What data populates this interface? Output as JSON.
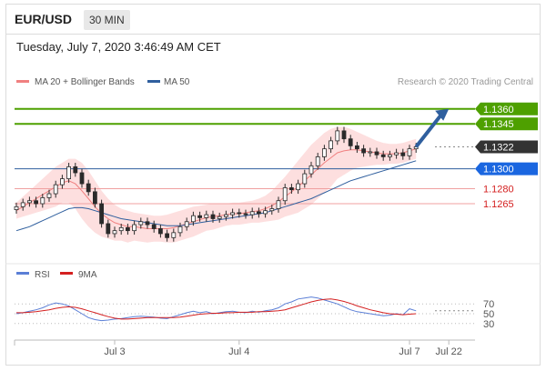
{
  "header": {
    "pair": "EUR/USD",
    "timeframe": "30 MIN"
  },
  "timestamp": "Tuesday, July 7, 2020 3:46:49 AM CET",
  "legend": {
    "ma20_bb": "MA 20 + Bollinger Bands",
    "ma50": "MA 50",
    "credit": "Research © 2020 Trading Central",
    "rsi": "RSI",
    "rsi_ma": "9MA"
  },
  "colors": {
    "ma20": "#f08080",
    "ma50": "#2f5f9e",
    "bands": "#fdd9d9",
    "green": "#4ea000",
    "red": "#d42020",
    "rsi": "#5b7fd6",
    "rsi_ma": "#d42020",
    "arrow": "#2f5f9e",
    "candle": "#1e7d1e"
  },
  "chart_data": {
    "type": "candlestick",
    "x_labels": [
      {
        "label": "Jul 3",
        "i": 15
      },
      {
        "label": "Jul 4",
        "i": 34
      },
      {
        "label": "Jul 7",
        "i": 60
      },
      {
        "label": "Jul 22",
        "i": 66
      }
    ],
    "y_range": [
      1.1214,
      1.1378
    ],
    "levels": [
      {
        "value": 1.136,
        "label": "1.1360",
        "kind": "resistance",
        "style": "green"
      },
      {
        "value": 1.1345,
        "label": "1.1345",
        "kind": "resistance",
        "style": "green"
      },
      {
        "value": 1.1322,
        "label": "1.1322",
        "kind": "last",
        "style": "dark"
      },
      {
        "value": 1.13,
        "label": "1.1300",
        "kind": "pivot",
        "style": "blue"
      },
      {
        "value": 1.128,
        "label": "1.1280",
        "kind": "support",
        "style": "red"
      },
      {
        "value": 1.1265,
        "label": "1.1265",
        "kind": "support",
        "style": "red"
      }
    ],
    "close": [
      1.1262,
      1.1266,
      1.1268,
      1.1265,
      1.1271,
      1.1275,
      1.1284,
      1.129,
      1.1302,
      1.1296,
      1.1285,
      1.1277,
      1.1265,
      1.1245,
      1.1235,
      1.1238,
      1.1241,
      1.1238,
      1.1244,
      1.1247,
      1.1244,
      1.124,
      1.1235,
      1.1231,
      1.1236,
      1.1242,
      1.1247,
      1.1253,
      1.1251,
      1.1254,
      1.125,
      1.1252,
      1.1254,
      1.1256,
      1.1255,
      1.1254,
      1.1257,
      1.1255,
      1.1258,
      1.126,
      1.1268,
      1.1281,
      1.1279,
      1.1285,
      1.1295,
      1.1303,
      1.1312,
      1.132,
      1.1328,
      1.1338,
      1.133,
      1.1323,
      1.132,
      1.1316,
      1.1317,
      1.1314,
      1.1312,
      1.1314,
      1.1316,
      1.1313,
      1.132,
      1.1322
    ],
    "ma20": [
      1.1258,
      1.1262,
      1.1266,
      1.127,
      1.1274,
      1.1278,
      1.1282,
      1.1286,
      1.1288,
      1.1285,
      1.1278,
      1.127,
      1.1262,
      1.1255,
      1.125,
      1.1246,
      1.1244,
      1.1242,
      1.1242,
      1.1241,
      1.124,
      1.124,
      1.124,
      1.124,
      1.1241,
      1.1243,
      1.1245,
      1.1247,
      1.1249,
      1.1251,
      1.1252,
      1.1253,
      1.1254,
      1.1255,
      1.1255,
      1.1256,
      1.1257,
      1.1258,
      1.126,
      1.1263,
      1.1267,
      1.1272,
      1.1277,
      1.1282,
      1.1288,
      1.1294,
      1.13,
      1.1306,
      1.1311,
      1.1316,
      1.1318,
      1.1319,
      1.1319,
      1.1318,
      1.1317,
      1.1316,
      1.1315,
      1.1315,
      1.1315,
      1.1316,
      1.1318,
      1.132
    ],
    "bb_upper": [
      1.1266,
      1.1272,
      1.1278,
      1.1284,
      1.129,
      1.1296,
      1.1302,
      1.1306,
      1.131,
      1.131,
      1.1306,
      1.1298,
      1.1288,
      1.1278,
      1.127,
      1.1264,
      1.126,
      1.1258,
      1.1256,
      1.1255,
      1.1254,
      1.1253,
      1.1253,
      1.1254,
      1.1256,
      1.1258,
      1.126,
      1.1262,
      1.1263,
      1.1264,
      1.1265,
      1.1265,
      1.1265,
      1.1266,
      1.1266,
      1.1267,
      1.1268,
      1.127,
      1.1273,
      1.1278,
      1.1285,
      1.1292,
      1.13,
      1.1308,
      1.1316,
      1.1324,
      1.133,
      1.1336,
      1.134,
      1.1342,
      1.1342,
      1.134,
      1.1337,
      1.1334,
      1.1331,
      1.1328,
      1.1326,
      1.1325,
      1.1325,
      1.1326,
      1.1328,
      1.133
    ],
    "bb_lower": [
      1.125,
      1.1252,
      1.1254,
      1.1256,
      1.1258,
      1.126,
      1.1262,
      1.1266,
      1.1266,
      1.126,
      1.125,
      1.1242,
      1.1236,
      1.1232,
      1.123,
      1.1228,
      1.1228,
      1.1226,
      1.1228,
      1.1227,
      1.1226,
      1.1227,
      1.1227,
      1.1226,
      1.1226,
      1.1228,
      1.123,
      1.1232,
      1.1235,
      1.1238,
      1.1239,
      1.1241,
      1.1243,
      1.1244,
      1.1244,
      1.1245,
      1.1246,
      1.1246,
      1.1247,
      1.1248,
      1.1249,
      1.1252,
      1.1254,
      1.1256,
      1.126,
      1.1264,
      1.127,
      1.1276,
      1.1282,
      1.129,
      1.1294,
      1.1298,
      1.1301,
      1.1302,
      1.1303,
      1.1304,
      1.1304,
      1.1305,
      1.1305,
      1.1306,
      1.1308,
      1.131
    ],
    "ma50": [
      1.1238,
      1.124,
      1.1242,
      1.1245,
      1.1248,
      1.1251,
      1.1254,
      1.1257,
      1.126,
      1.1261,
      1.1261,
      1.126,
      1.1258,
      1.1256,
      1.1254,
      1.1252,
      1.125,
      1.1249,
      1.1248,
      1.1247,
      1.1246,
      1.1245,
      1.1244,
      1.1243,
      1.1243,
      1.1243,
      1.1244,
      1.1245,
      1.1246,
      1.1247,
      1.1248,
      1.1249,
      1.125,
      1.1251,
      1.1252,
      1.1253,
      1.1254,
      1.1255,
      1.1256,
      1.1258,
      1.126,
      1.1262,
      1.1264,
      1.1266,
      1.1268,
      1.127,
      1.1273,
      1.1276,
      1.1279,
      1.1282,
      1.1285,
      1.1288,
      1.129,
      1.1292,
      1.1294,
      1.1296,
      1.1298,
      1.13,
      1.1302,
      1.1304,
      1.1306,
      1.1308
    ],
    "arrow": {
      "from": [
        61,
        1.1322
      ],
      "to": [
        66,
        1.136
      ]
    },
    "rsi": {
      "ticks": [
        70,
        50,
        30
      ],
      "rsi": [
        50,
        52,
        55,
        58,
        62,
        68,
        72,
        70,
        66,
        58,
        50,
        42,
        38,
        36,
        37,
        39,
        40,
        42,
        44,
        45,
        44,
        43,
        41,
        40,
        44,
        48,
        52,
        55,
        52,
        54,
        50,
        52,
        54,
        55,
        53,
        52,
        55,
        53,
        56,
        58,
        62,
        70,
        74,
        80,
        82,
        84,
        82,
        78,
        74,
        70,
        64,
        58,
        54,
        52,
        50,
        48,
        46,
        47,
        50,
        48,
        60,
        56
      ],
      "ma9": [
        52,
        52,
        53,
        54,
        56,
        58,
        61,
        63,
        64,
        63,
        60,
        56,
        52,
        48,
        44,
        41,
        39,
        39,
        40,
        41,
        42,
        42,
        42,
        42,
        42,
        43,
        45,
        47,
        49,
        50,
        51,
        51,
        52,
        52,
        53,
        53,
        53,
        54,
        54,
        55,
        56,
        58,
        62,
        66,
        70,
        74,
        77,
        79,
        80,
        78,
        75,
        71,
        66,
        62,
        58,
        55,
        52,
        50,
        49,
        48,
        49,
        50
      ]
    }
  }
}
